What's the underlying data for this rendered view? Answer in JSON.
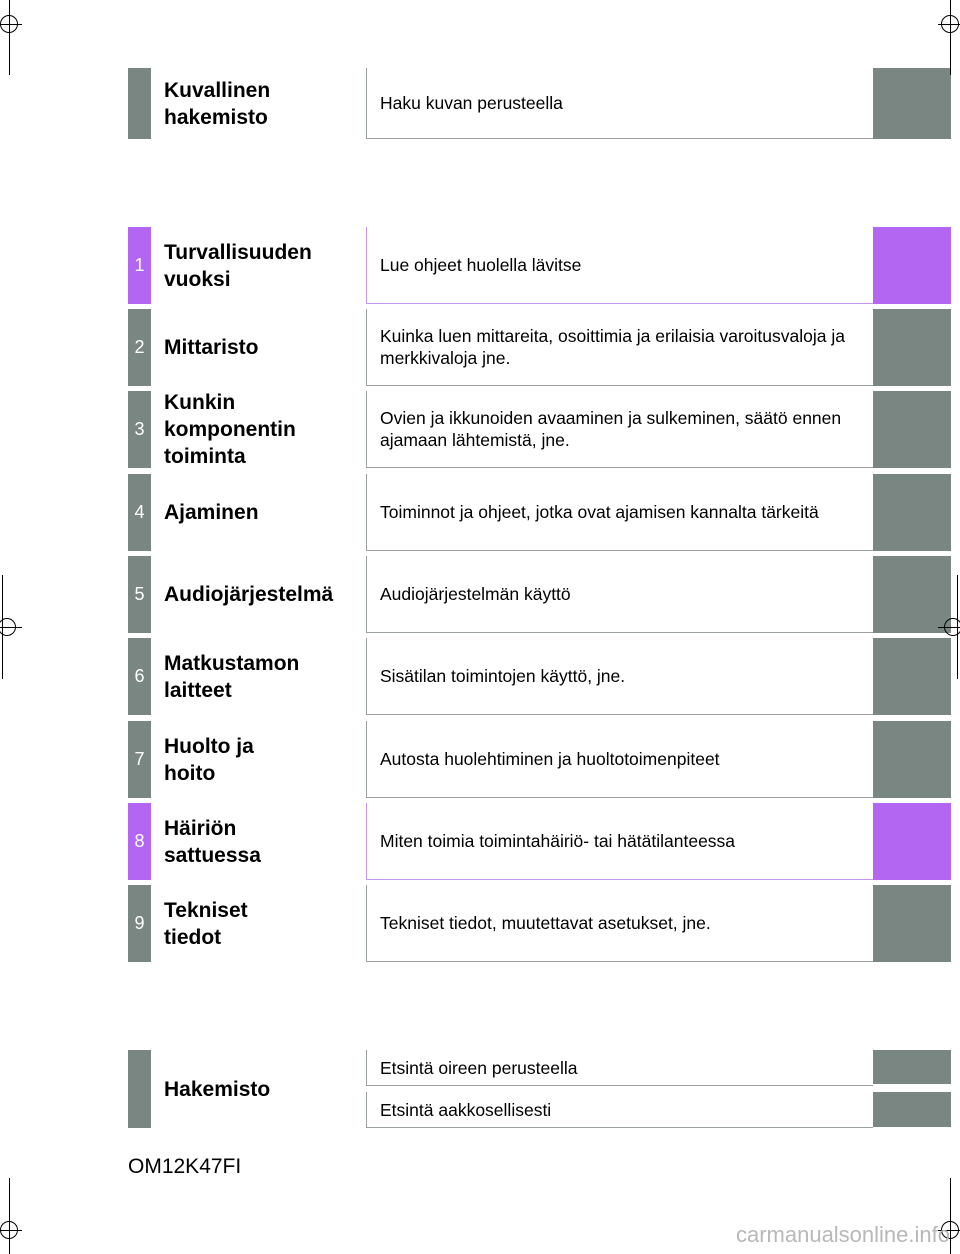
{
  "picture_index": {
    "title": "Kuvallinen\nhakemisto",
    "description": "Haku kuvan perusteella"
  },
  "chapters": [
    {
      "number": "1",
      "title": "Turvallisuuden\nvuoksi",
      "description": "Lue ohjeet huolella lävitse",
      "highlight": true
    },
    {
      "number": "2",
      "title": "Mittaristo",
      "description": "Kuinka luen mittareita, osoittimia ja erilaisia varoitusvaloja ja merkkivaloja jne.",
      "highlight": false
    },
    {
      "number": "3",
      "title": "Kunkin\nkomponentin\ntoiminta",
      "description": "Ovien ja ikkunoiden avaaminen ja sulkeminen, säätö ennen ajamaan lähtemistä, jne.",
      "highlight": false
    },
    {
      "number": "4",
      "title": "Ajaminen",
      "description": "Toiminnot ja ohjeet, jotka ovat ajamisen kannalta tärkeitä",
      "highlight": false
    },
    {
      "number": "5",
      "title": "Audiojärjestelmä",
      "description": "Audiojärjestelmän käyttö",
      "highlight": false
    },
    {
      "number": "6",
      "title": "Matkustamon\nlaitteet",
      "description": "Sisätilan toimintojen käyttö, jne.",
      "highlight": false
    },
    {
      "number": "7",
      "title": "Huolto ja\nhoito",
      "description": "Autosta huolehtiminen ja huoltotoimenpiteet",
      "highlight": false
    },
    {
      "number": "8",
      "title": "Häiriön\nsattuessa",
      "description": "Miten toimia toimintahäiriö- tai hätätilanteessa",
      "highlight": true
    },
    {
      "number": "9",
      "title": "Tekniset\ntiedot",
      "description": "Tekniset tiedot, muutettavat asetukset, jne.",
      "highlight": false
    }
  ],
  "index": {
    "title": "Hakemisto",
    "items": [
      "Etsintä oireen perusteella",
      "Etsintä aakkosellisesti"
    ]
  },
  "footer_code": "OM12K47FI",
  "watermark": "carmanualsonline.info",
  "colors": {
    "tab_gray": "#7a8681",
    "tab_purple": "#b366f2"
  }
}
